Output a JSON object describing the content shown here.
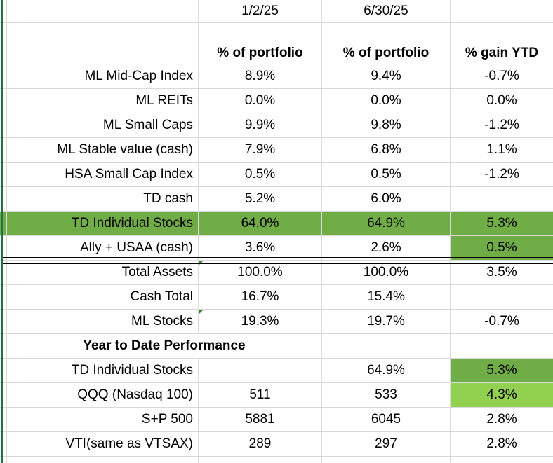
{
  "sheet": {
    "colors": {
      "highlight_green": "#70ad47",
      "highlight_light_green": "#92d050",
      "edge_green": "#217346",
      "grid_color": "#d9d9d9",
      "error_indicator": "#2e8b2e"
    },
    "date_row": {
      "date1": "1/2/25",
      "date2": "6/30/25"
    },
    "header_row": {
      "col1": "% of portfolio",
      "col2": "% of portfolio",
      "col3": "% gain YTD"
    },
    "rows": [
      {
        "label": "ML Mid-Cap Index",
        "v1": "8.9%",
        "v2": "9.4%",
        "v3": "-0.7%"
      },
      {
        "label": "ML REITs",
        "v1": "0.0%",
        "v2": "0.0%",
        "v3": "0.0%"
      },
      {
        "label": "ML Small Caps",
        "v1": "9.9%",
        "v2": "9.8%",
        "v3": "-1.2%"
      },
      {
        "label": "ML Stable value (cash)",
        "v1": "7.9%",
        "v2": "6.8%",
        "v3": "1.1%"
      },
      {
        "label": "HSA Small Cap Index",
        "v1": "0.5%",
        "v2": "0.5%",
        "v3": "-1.2%"
      },
      {
        "label": "TD cash",
        "v1": "5.2%",
        "v2": "6.0%",
        "v3": ""
      },
      {
        "label": "TD Individual Stocks",
        "v1": "64.0%",
        "v2": "64.9%",
        "v3": "5.3%"
      },
      {
        "label": "Ally + USAA (cash)",
        "v1": "3.6%",
        "v2": "2.6%",
        "v3": "0.5%"
      }
    ],
    "summary_rows": [
      {
        "label": "Total Assets",
        "v1": "100.0%",
        "v2": "100.0%",
        "v3": "3.5%"
      },
      {
        "label": "Cash Total",
        "v1": "16.7%",
        "v2": "15.4%",
        "v3": ""
      },
      {
        "label": "ML Stocks",
        "v1": "19.3%",
        "v2": "19.7%",
        "v3": "-0.7%"
      }
    ],
    "section_header": "Year to Date Performance",
    "ytd_rows": [
      {
        "label": "TD Individual Stocks",
        "v1": "",
        "v2": "64.9%",
        "v3": "5.3%"
      },
      {
        "label": "QQQ (Nasdaq 100)",
        "v1": "511",
        "v2": "533",
        "v3": "4.3%"
      },
      {
        "label": "S+P 500",
        "v1": "5881",
        "v2": "6045",
        "v3": "2.8%"
      },
      {
        "label": "VTI(same as VTSAX)",
        "v1": "289",
        "v2": "297",
        "v3": "2.8%"
      }
    ]
  }
}
